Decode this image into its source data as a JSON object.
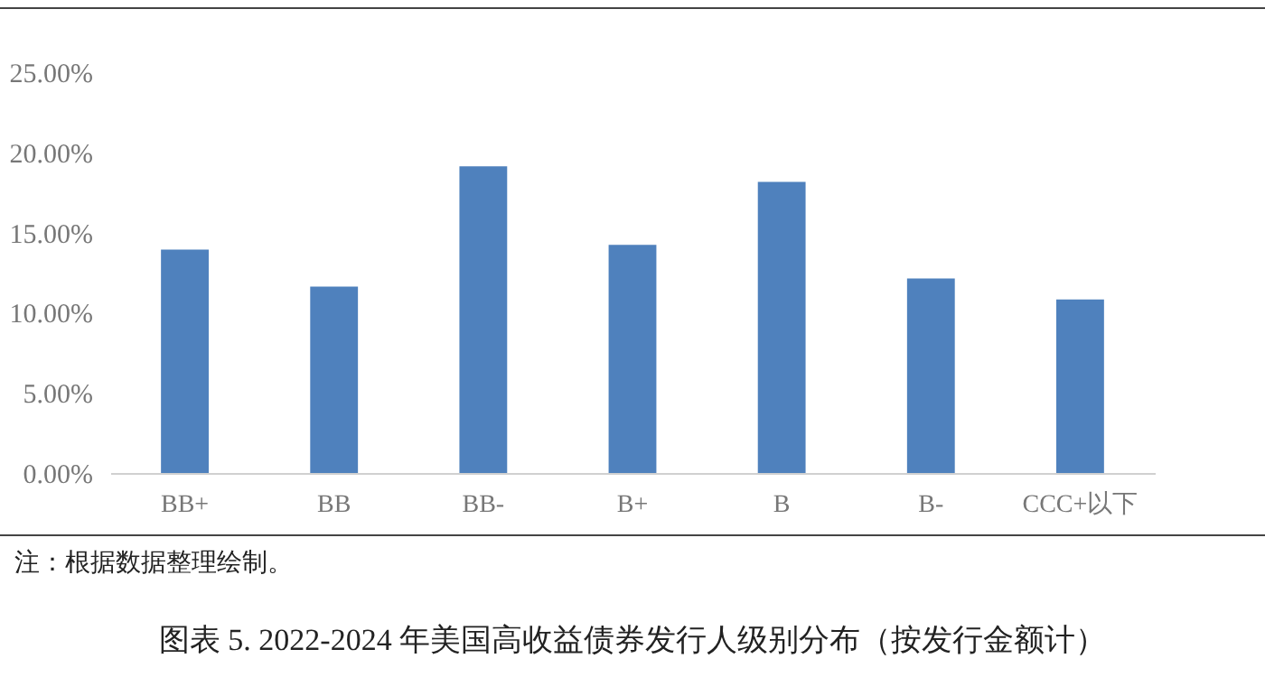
{
  "chart_data": {
    "type": "bar",
    "title": "图表 5.   2022-2024 年美国高收益债券发行人级别分布（按发行金额计）",
    "categories": [
      "BB+",
      "BB",
      "BB-",
      "B+",
      "B",
      "B-",
      "CCC+以下"
    ],
    "values": [
      13.93,
      11.63,
      19.13,
      14.23,
      18.16,
      12.14,
      10.82
    ],
    "color": "#4f81bd",
    "ylim": [
      0,
      25
    ],
    "yticks": [
      {
        "value": 0,
        "label": "0.00%"
      },
      {
        "value": 5,
        "label": "5.00%"
      },
      {
        "value": 10,
        "label": "10.00%"
      },
      {
        "value": 15,
        "label": "15.00%"
      },
      {
        "value": 20,
        "label": "20.00%"
      },
      {
        "value": 25,
        "label": "25.00%"
      }
    ],
    "grid": false,
    "annotations": [
      "注：根据数据整理绘制。"
    ]
  }
}
